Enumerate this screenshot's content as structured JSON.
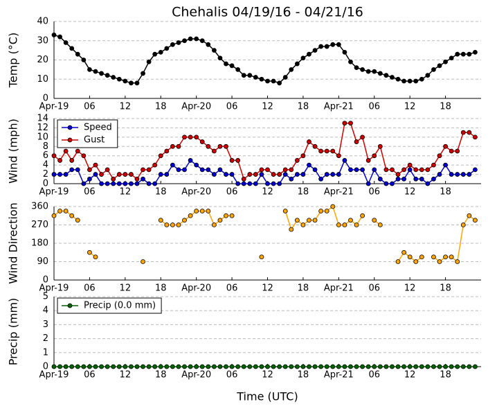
{
  "chart_data": [
    {
      "type": "line",
      "title": "Chehalis 04/19/16 - 04/21/16",
      "ylabel": "Temp ($^\\circ$C)",
      "x": [
        0,
        1,
        2,
        3,
        4,
        5,
        6,
        7,
        8,
        9,
        10,
        11,
        12,
        13,
        14,
        15,
        16,
        17,
        18,
        19,
        20,
        21,
        22,
        23,
        24,
        25,
        26,
        27,
        28,
        29,
        30,
        31,
        32,
        33,
        34,
        35,
        36,
        37,
        38,
        39,
        40,
        41,
        42,
        43,
        44,
        45,
        46,
        47,
        48,
        49,
        50,
        51,
        52,
        53,
        54,
        55,
        56,
        57,
        58,
        59,
        60,
        61,
        62,
        63,
        64,
        65,
        66,
        67,
        68,
        69,
        70,
        71
      ],
      "xlim": [
        0,
        72
      ],
      "xticks": [
        {
          "value": 0,
          "label": "Apr-19"
        },
        {
          "value": 6,
          "label": "06"
        },
        12,
        18,
        {
          "value": 24,
          "label": "Apr-20"
        },
        {
          "value": 30,
          "label": "06"
        },
        {
          "value": 36,
          "label": "12"
        },
        {
          "value": 42,
          "label": "18"
        },
        {
          "value": 48,
          "label": "Apr-21"
        },
        {
          "value": 54,
          "label": "06"
        },
        {
          "value": 60,
          "label": "12"
        },
        {
          "value": 66,
          "label": "18"
        }
      ],
      "ylim": [
        0,
        40
      ],
      "yticks": [
        0,
        10,
        20,
        30,
        40
      ],
      "grid": true,
      "series": [
        {
          "name": "Temp",
          "color": "#000000",
          "values": [
            33,
            32,
            29,
            26,
            23,
            20,
            15,
            14,
            13,
            12,
            11,
            10,
            9,
            8,
            8,
            13,
            19,
            23,
            24,
            26,
            28,
            29,
            30,
            31,
            31,
            30,
            28,
            25,
            21,
            18,
            17,
            15,
            12,
            12,
            11,
            10,
            9,
            9,
            8,
            11,
            15,
            18,
            21,
            23,
            25,
            27,
            27,
            28,
            28,
            24,
            19,
            16,
            15,
            14,
            14,
            13,
            12,
            11,
            10,
            9,
            9,
            9,
            10,
            12,
            15,
            17,
            19,
            21,
            23,
            23,
            23,
            24
          ]
        }
      ]
    },
    {
      "type": "line",
      "ylabel": "Wind (mph)",
      "x": [
        0,
        1,
        2,
        3,
        4,
        5,
        6,
        7,
        8,
        9,
        10,
        11,
        12,
        13,
        14,
        15,
        16,
        17,
        18,
        19,
        20,
        21,
        22,
        23,
        24,
        25,
        26,
        27,
        28,
        29,
        30,
        31,
        32,
        33,
        34,
        35,
        36,
        37,
        38,
        39,
        40,
        41,
        42,
        43,
        44,
        45,
        46,
        47,
        48,
        49,
        50,
        51,
        52,
        53,
        54,
        55,
        56,
        57,
        58,
        59,
        60,
        61,
        62,
        63,
        64,
        65,
        66,
        67,
        68,
        69,
        70,
        71
      ],
      "xlim": [
        0,
        72
      ],
      "xticks": [
        {
          "value": 0,
          "label": "Apr-19"
        },
        {
          "value": 6,
          "label": "06"
        },
        12,
        18,
        {
          "value": 24,
          "label": "Apr-20"
        },
        {
          "value": 30,
          "label": "06"
        },
        {
          "value": 36,
          "label": "12"
        },
        {
          "value": 42,
          "label": "18"
        },
        {
          "value": 48,
          "label": "Apr-21"
        },
        {
          "value": 54,
          "label": "06"
        },
        {
          "value": 60,
          "label": "12"
        },
        {
          "value": 66,
          "label": "18"
        }
      ],
      "ylim": [
        0,
        14
      ],
      "yticks": [
        0,
        2,
        4,
        6,
        8,
        10,
        12,
        14
      ],
      "grid": true,
      "legend": "upper left",
      "series": [
        {
          "name": "Speed",
          "color": "#0000cc",
          "values": [
            2,
            2,
            2,
            3,
            3,
            0,
            1,
            2,
            0,
            0,
            0,
            0,
            0,
            0,
            0,
            1,
            0,
            0,
            2,
            2,
            4,
            3,
            3,
            5,
            4,
            3,
            3,
            2,
            3,
            2,
            2,
            0,
            0,
            0,
            0,
            2,
            0,
            0,
            0,
            2,
            1,
            2,
            2,
            4,
            3,
            1,
            2,
            2,
            2,
            5,
            3,
            3,
            3,
            0,
            3,
            1,
            0,
            0,
            1,
            1,
            3,
            1,
            1,
            0,
            1,
            2,
            4,
            2,
            2,
            2,
            2,
            3
          ]
        },
        {
          "name": "Gust",
          "color": "#cc0000",
          "values": [
            6,
            5,
            7,
            5,
            7,
            6,
            3,
            4,
            2,
            3,
            1,
            2,
            2,
            2,
            1,
            3,
            3,
            4,
            6,
            7,
            8,
            8,
            10,
            10,
            10,
            9,
            8,
            7,
            8,
            8,
            5,
            5,
            1,
            2,
            2,
            3,
            3,
            2,
            2,
            3,
            3,
            5,
            6,
            9,
            8,
            7,
            7,
            7,
            6,
            13,
            13,
            9,
            10,
            5,
            6,
            8,
            3,
            3,
            2,
            3,
            4,
            3,
            3,
            3,
            4,
            6,
            8,
            7,
            7,
            11,
            11,
            10
          ]
        }
      ]
    },
    {
      "type": "line",
      "ylabel": "Wind Direction",
      "x": [
        0,
        1,
        2,
        3,
        4,
        5,
        6,
        7,
        8,
        9,
        10,
        11,
        12,
        13,
        14,
        15,
        16,
        17,
        18,
        19,
        20,
        21,
        22,
        23,
        24,
        25,
        26,
        27,
        28,
        29,
        30,
        31,
        32,
        33,
        34,
        35,
        36,
        37,
        38,
        39,
        40,
        41,
        42,
        43,
        44,
        45,
        46,
        47,
        48,
        49,
        50,
        51,
        52,
        53,
        54,
        55,
        56,
        57,
        58,
        59,
        60,
        61,
        62,
        63,
        64,
        65,
        66,
        67,
        68,
        69,
        70,
        71
      ],
      "xlim": [
        0,
        72
      ],
      "xticks": [
        {
          "value": 0,
          "label": "Apr-19"
        },
        {
          "value": 6,
          "label": "06"
        },
        12,
        18,
        {
          "value": 24,
          "label": "Apr-20"
        },
        {
          "value": 30,
          "label": "06"
        },
        {
          "value": 36,
          "label": "12"
        },
        {
          "value": 42,
          "label": "18"
        },
        {
          "value": 48,
          "label": "Apr-21"
        },
        {
          "value": 54,
          "label": "06"
        },
        {
          "value": 60,
          "label": "12"
        },
        {
          "value": 66,
          "label": "18"
        }
      ],
      "ylim": [
        0,
        360
      ],
      "yticks": [
        0,
        90,
        180,
        270,
        360
      ],
      "grid": true,
      "series": [
        {
          "name": "Direction",
          "color": "#ffa500",
          "values": [
            315,
            338,
            338,
            315,
            293,
            null,
            135,
            113,
            null,
            null,
            null,
            null,
            null,
            null,
            null,
            90,
            null,
            null,
            293,
            270,
            270,
            270,
            293,
            315,
            338,
            338,
            338,
            270,
            293,
            315,
            315,
            null,
            null,
            null,
            null,
            113,
            null,
            null,
            null,
            338,
            248,
            293,
            270,
            293,
            293,
            338,
            338,
            360,
            270,
            270,
            293,
            270,
            315,
            null,
            293,
            270,
            null,
            null,
            90,
            135,
            113,
            90,
            113,
            null,
            113,
            90,
            113,
            113,
            90,
            270,
            315,
            293
          ]
        }
      ]
    },
    {
      "type": "line",
      "ylabel": "Precip (mm)",
      "xlabel": "Time (UTC)",
      "x": [
        0,
        1,
        2,
        3,
        4,
        5,
        6,
        7,
        8,
        9,
        10,
        11,
        12,
        13,
        14,
        15,
        16,
        17,
        18,
        19,
        20,
        21,
        22,
        23,
        24,
        25,
        26,
        27,
        28,
        29,
        30,
        31,
        32,
        33,
        34,
        35,
        36,
        37,
        38,
        39,
        40,
        41,
        42,
        43,
        44,
        45,
        46,
        47,
        48,
        49,
        50,
        51,
        52,
        53,
        54,
        55,
        56,
        57,
        58,
        59,
        60,
        61,
        62,
        63,
        64,
        65,
        66,
        67,
        68,
        69,
        70,
        71
      ],
      "xlim": [
        0,
        72
      ],
      "xticks": [
        {
          "value": 0,
          "label": "Apr-19"
        },
        {
          "value": 6,
          "label": "06"
        },
        12,
        18,
        {
          "value": 24,
          "label": "Apr-20"
        },
        {
          "value": 30,
          "label": "06"
        },
        {
          "value": 36,
          "label": "12"
        },
        {
          "value": 42,
          "label": "18"
        },
        {
          "value": 48,
          "label": "Apr-21"
        },
        {
          "value": 54,
          "label": "06"
        },
        {
          "value": 60,
          "label": "12"
        },
        {
          "value": 66,
          "label": "18"
        }
      ],
      "ylim": [
        0,
        5
      ],
      "yticks": [
        0,
        1,
        2,
        3,
        4,
        5
      ],
      "grid": true,
      "legend": "upper left",
      "series": [
        {
          "name": "Precip (0.0 mm)",
          "color": "#006400",
          "values": [
            0,
            0,
            0,
            0,
            0,
            0,
            0,
            0,
            0,
            0,
            0,
            0,
            0,
            0,
            0,
            0,
            0,
            0,
            0,
            0,
            0,
            0,
            0,
            0,
            0,
            0,
            0,
            0,
            0,
            0,
            0,
            0,
            0,
            0,
            0,
            0,
            0,
            0,
            0,
            0,
            0,
            0,
            0,
            0,
            0,
            0,
            0,
            0,
            0,
            0,
            0,
            0,
            0,
            0,
            0,
            0,
            0,
            0,
            0,
            0,
            0,
            0,
            0,
            0,
            0,
            0,
            0,
            0,
            0,
            0,
            0,
            0
          ]
        }
      ]
    }
  ]
}
